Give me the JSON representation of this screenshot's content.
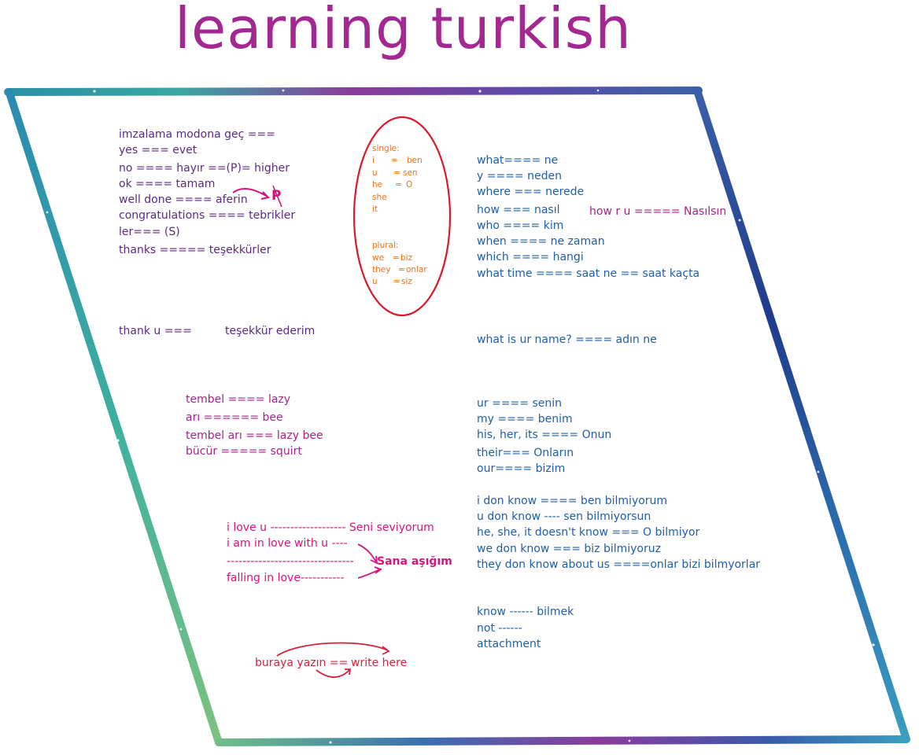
{
  "title": "learning turkish",
  "colors": {
    "title": "#a32891",
    "purple_notes": "#5b2a83",
    "magenta_notes": "#a8228c",
    "blue_notes": "#1f5fa8",
    "pink_notes": "#d4147d",
    "red_notes": "#d2233c",
    "orange_notes": "#e8731c",
    "oval": "#d9192c"
  },
  "left_notes": [
    "imzalama modona geç  ===",
    "yes === evet",
    "no  ==== hayır ==(P)= higher",
    "ok   ==== tamam",
    "well done  ==== aferin",
    "congratulations ====  tebrikler",
    "ler=== (S)",
    "thanks ===== teşekkürler"
  ],
  "p_mark": "P",
  "thank_u": {
    "left": "thank u ===",
    "right": "teşekkür ederim"
  },
  "pronouns": {
    "single_label": "single:",
    "single": [
      {
        "en": "i",
        "eq": "=",
        "tr": "ben"
      },
      {
        "en": "u",
        "eq": "=",
        "tr": "sen"
      },
      {
        "en": "he",
        "eq": "=",
        "tr": "O"
      },
      {
        "en": "she",
        "eq": "",
        "tr": ""
      },
      {
        "en": "it",
        "eq": "",
        "tr": ""
      }
    ],
    "plural_label": "plural:",
    "plural": [
      {
        "en": "we",
        "eq": "=",
        "tr": "biz"
      },
      {
        "en": "they",
        "eq": "=",
        "tr": "onlar"
      },
      {
        "en": "u",
        "eq": "=",
        "tr": "siz"
      }
    ]
  },
  "questions": [
    "what==== ne",
    "y     ====  neden",
    "where  === nerede",
    "how   === nasıl",
    "who ==== kim",
    "when  ==== ne zaman",
    "which  ==== hangi",
    "what time ==== saat ne == saat kaçta"
  ],
  "how_r_u": "how r u ===== Nasılsın",
  "name_q": "what is ur name? ==== adın ne",
  "bee_notes": [
    "tembel ==== lazy",
    "arı     ====== bee",
    "tembel arı === lazy bee",
    "bücür ===== squirt"
  ],
  "possessives": [
    "ur ====  senin",
    "my ====  benim",
    "his, her, its ==== Onun",
    "their=== Onların",
    "our==== bizim"
  ],
  "dont_know": [
    "i don know ==== ben bilmiyorum",
    "u don know ----  sen  bilmiyorsun",
    "he, she, it doesn't know === O bilmiyor",
    "we don know === biz bilmiyoruz",
    "they don know about us ====onlar bizi bilmyorlar"
  ],
  "love_notes": [
    "i love u ------------------- Seni seviyorum",
    "i am in love with u ----",
    "--------------------------------",
    "falling in love-----------"
  ],
  "love_target": "Sana aşığım",
  "know_notes": [
    "know ------ bilmek",
    "not ------",
    "attachment"
  ],
  "write_here": {
    "left": "buraya yazın == ",
    "right": "write here"
  }
}
